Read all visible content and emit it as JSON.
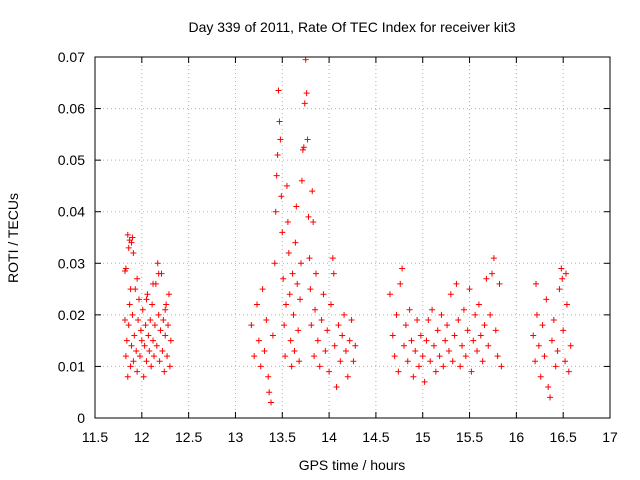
{
  "chart_data": {
    "type": "scatter",
    "title": "Day 339 of 2011, Rate Of TEC Index for receiver kit3",
    "xlabel": "GPS time / hours",
    "ylabel": "ROTI / TECUs",
    "xlim": [
      11.5,
      17
    ],
    "ylim": [
      0,
      0.07
    ],
    "x_ticks": [
      11.5,
      12,
      12.5,
      13,
      13.5,
      14,
      14.5,
      15,
      15.5,
      16,
      16.5,
      17
    ],
    "x_tick_labels": [
      "11.5",
      "12",
      "12.5",
      "13",
      "13.5",
      "14",
      "14.5",
      "15",
      "15.5",
      "16",
      "16.5",
      "17"
    ],
    "y_ticks": [
      0,
      0.01,
      0.02,
      0.03,
      0.04,
      0.05,
      0.06,
      0.07
    ],
    "y_tick_labels": [
      "0",
      "0.01",
      "0.02",
      "0.03",
      "0.04",
      "0.05",
      "0.06",
      "0.07"
    ],
    "grid": true,
    "marker": "+",
    "color": "#ff0000",
    "series": [
      {
        "name": "kit3",
        "points": [
          [
            11.82,
            0.0285
          ],
          [
            11.83,
            0.029
          ],
          [
            11.85,
            0.0355
          ],
          [
            11.87,
            0.0345
          ],
          [
            11.89,
            0.034
          ],
          [
            11.9,
            0.035
          ],
          [
            11.86,
            0.033
          ],
          [
            11.91,
            0.032
          ],
          [
            11.82,
            0.019
          ],
          [
            11.83,
            0.012
          ],
          [
            11.84,
            0.015
          ],
          [
            11.85,
            0.008
          ],
          [
            11.86,
            0.018
          ],
          [
            11.87,
            0.022
          ],
          [
            11.88,
            0.01
          ],
          [
            11.89,
            0.014
          ],
          [
            11.9,
            0.02
          ],
          [
            11.91,
            0.011
          ],
          [
            11.92,
            0.016
          ],
          [
            11.93,
            0.025
          ],
          [
            11.94,
            0.013
          ],
          [
            11.95,
            0.009
          ],
          [
            11.96,
            0.019
          ],
          [
            11.97,
            0.023
          ],
          [
            11.98,
            0.012
          ],
          [
            11.99,
            0.017
          ],
          [
            12.0,
            0.015
          ],
          [
            12.01,
            0.021
          ],
          [
            12.02,
            0.008
          ],
          [
            12.03,
            0.014
          ],
          [
            12.04,
            0.018
          ],
          [
            12.05,
            0.011
          ],
          [
            12.06,
            0.024
          ],
          [
            12.07,
            0.016
          ],
          [
            12.08,
            0.013
          ],
          [
            12.09,
            0.019
          ],
          [
            12.1,
            0.01
          ],
          [
            12.11,
            0.022
          ],
          [
            12.12,
            0.015
          ],
          [
            12.13,
            0.012
          ],
          [
            12.14,
            0.018
          ],
          [
            12.15,
            0.026
          ],
          [
            12.16,
            0.014
          ],
          [
            12.17,
            0.03
          ],
          [
            12.18,
            0.02
          ],
          [
            12.19,
            0.011
          ],
          [
            12.2,
            0.017
          ],
          [
            12.21,
            0.028
          ],
          [
            12.22,
            0.013
          ],
          [
            12.23,
            0.019
          ],
          [
            12.24,
            0.009
          ],
          [
            12.25,
            0.016
          ],
          [
            12.26,
            0.022
          ],
          [
            12.27,
            0.012
          ],
          [
            12.28,
            0.018
          ],
          [
            12.29,
            0.024
          ],
          [
            12.3,
            0.01
          ],
          [
            12.31,
            0.015
          ],
          [
            11.88,
            0.025
          ],
          [
            11.95,
            0.027
          ],
          [
            12.05,
            0.023
          ],
          [
            12.12,
            0.026
          ],
          [
            12.18,
            0.028
          ],
          [
            12.25,
            0.021
          ],
          [
            13.17,
            0.018
          ],
          [
            13.2,
            0.012
          ],
          [
            13.23,
            0.022
          ],
          [
            13.25,
            0.015
          ],
          [
            13.27,
            0.01
          ],
          [
            13.29,
            0.025
          ],
          [
            13.31,
            0.013
          ],
          [
            13.33,
            0.019
          ],
          [
            13.35,
            0.008
          ],
          [
            13.36,
            0.005
          ],
          [
            13.38,
            0.003
          ],
          [
            13.4,
            0.016
          ],
          [
            13.42,
            0.03
          ],
          [
            13.43,
            0.04
          ],
          [
            13.44,
            0.047
          ],
          [
            13.45,
            0.051
          ],
          [
            13.46,
            0.0635
          ],
          [
            13.47,
            0.0575
          ],
          [
            13.48,
            0.054
          ],
          [
            13.49,
            0.043
          ],
          [
            13.5,
            0.036
          ],
          [
            13.51,
            0.027
          ],
          [
            13.52,
            0.018
          ],
          [
            13.53,
            0.012
          ],
          [
            13.54,
            0.022
          ],
          [
            13.55,
            0.045
          ],
          [
            13.56,
            0.038
          ],
          [
            13.57,
            0.032
          ],
          [
            13.58,
            0.024
          ],
          [
            13.59,
            0.015
          ],
          [
            13.6,
            0.01
          ],
          [
            13.61,
            0.028
          ],
          [
            13.62,
            0.02
          ],
          [
            13.63,
            0.013
          ],
          [
            13.64,
            0.034
          ],
          [
            13.65,
            0.041
          ],
          [
            13.66,
            0.026
          ],
          [
            13.67,
            0.017
          ],
          [
            13.68,
            0.011
          ],
          [
            13.69,
            0.023
          ],
          [
            13.7,
            0.03
          ],
          [
            13.71,
            0.046
          ],
          [
            13.72,
            0.052
          ],
          [
            13.73,
            0.0525
          ],
          [
            13.74,
            0.061
          ],
          [
            13.75,
            0.0695
          ],
          [
            13.76,
            0.063
          ],
          [
            13.77,
            0.054
          ],
          [
            13.78,
            0.039
          ],
          [
            13.79,
            0.031
          ],
          [
            13.8,
            0.025
          ],
          [
            13.81,
            0.018
          ],
          [
            13.82,
            0.044
          ],
          [
            13.83,
            0.038
          ],
          [
            13.84,
            0.012
          ],
          [
            13.85,
            0.021
          ],
          [
            13.86,
            0.028
          ],
          [
            13.88,
            0.015
          ],
          [
            13.9,
            0.01
          ],
          [
            13.92,
            0.019
          ],
          [
            13.94,
            0.024
          ],
          [
            13.96,
            0.013
          ],
          [
            13.98,
            0.017
          ],
          [
            14.0,
            0.009
          ],
          [
            14.02,
            0.022
          ],
          [
            14.04,
            0.031
          ],
          [
            14.05,
            0.028
          ],
          [
            14.06,
            0.014
          ],
          [
            14.08,
            0.006
          ],
          [
            14.1,
            0.018
          ],
          [
            14.12,
            0.011
          ],
          [
            14.14,
            0.016
          ],
          [
            14.16,
            0.02
          ],
          [
            14.18,
            0.013
          ],
          [
            14.2,
            0.008
          ],
          [
            14.22,
            0.015
          ],
          [
            14.24,
            0.019
          ],
          [
            14.26,
            0.011
          ],
          [
            14.28,
            0.014
          ],
          [
            14.65,
            0.024
          ],
          [
            14.68,
            0.016
          ],
          [
            14.7,
            0.012
          ],
          [
            14.72,
            0.02
          ],
          [
            14.74,
            0.009
          ],
          [
            14.76,
            0.026
          ],
          [
            14.78,
            0.029
          ],
          [
            14.8,
            0.014
          ],
          [
            14.82,
            0.018
          ],
          [
            14.84,
            0.011
          ],
          [
            14.86,
            0.021
          ],
          [
            14.88,
            0.015
          ],
          [
            14.9,
            0.008
          ],
          [
            14.92,
            0.013
          ],
          [
            14.94,
            0.019
          ],
          [
            14.96,
            0.01
          ],
          [
            14.98,
            0.016
          ],
          [
            15.0,
            0.012
          ],
          [
            15.02,
            0.007
          ],
          [
            15.04,
            0.015
          ],
          [
            15.06,
            0.019
          ],
          [
            15.08,
            0.011
          ],
          [
            15.1,
            0.021
          ],
          [
            15.12,
            0.014
          ],
          [
            15.14,
            0.009
          ],
          [
            15.16,
            0.017
          ],
          [
            15.18,
            0.012
          ],
          [
            15.2,
            0.02
          ],
          [
            15.22,
            0.01
          ],
          [
            15.24,
            0.015
          ],
          [
            15.26,
            0.018
          ],
          [
            15.28,
            0.013
          ],
          [
            15.3,
            0.024
          ],
          [
            15.32,
            0.011
          ],
          [
            15.34,
            0.016
          ],
          [
            15.36,
            0.026
          ],
          [
            15.38,
            0.019
          ],
          [
            15.4,
            0.01
          ],
          [
            15.42,
            0.014
          ],
          [
            15.44,
            0.021
          ],
          [
            15.46,
            0.012
          ],
          [
            15.48,
            0.017
          ],
          [
            15.5,
            0.025
          ],
          [
            15.52,
            0.009
          ],
          [
            15.54,
            0.015
          ],
          [
            15.56,
            0.02
          ],
          [
            15.58,
            0.013
          ],
          [
            15.6,
            0.022
          ],
          [
            15.62,
            0.016
          ],
          [
            15.64,
            0.011
          ],
          [
            15.66,
            0.018
          ],
          [
            15.68,
            0.027
          ],
          [
            15.7,
            0.014
          ],
          [
            15.72,
            0.02
          ],
          [
            15.74,
            0.028
          ],
          [
            15.76,
            0.031
          ],
          [
            15.78,
            0.017
          ],
          [
            15.8,
            0.012
          ],
          [
            15.82,
            0.026
          ],
          [
            15.84,
            0.01
          ],
          [
            16.18,
            0.016
          ],
          [
            16.2,
            0.011
          ],
          [
            16.21,
            0.026
          ],
          [
            16.22,
            0.02
          ],
          [
            16.24,
            0.014
          ],
          [
            16.26,
            0.008
          ],
          [
            16.28,
            0.018
          ],
          [
            16.3,
            0.012
          ],
          [
            16.32,
            0.023
          ],
          [
            16.34,
            0.006
          ],
          [
            16.36,
            0.004
          ],
          [
            16.38,
            0.015
          ],
          [
            16.4,
            0.019
          ],
          [
            16.42,
            0.01
          ],
          [
            16.44,
            0.013
          ],
          [
            16.46,
            0.025
          ],
          [
            16.48,
            0.029
          ],
          [
            16.5,
            0.017
          ],
          [
            16.52,
            0.011
          ],
          [
            16.54,
            0.022
          ],
          [
            16.56,
            0.009
          ],
          [
            16.58,
            0.014
          ],
          [
            16.49,
            0.027
          ],
          [
            16.53,
            0.028
          ]
        ]
      }
    ]
  }
}
